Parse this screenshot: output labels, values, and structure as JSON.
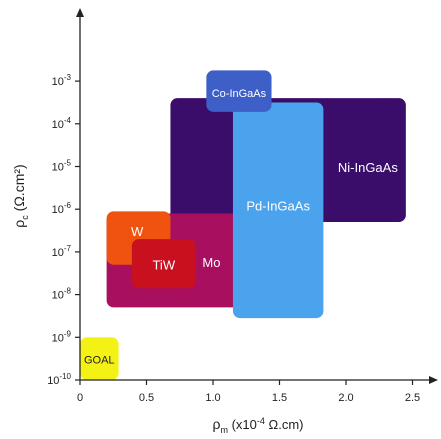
{
  "chart_data": {
    "type": "region-map",
    "xlabel": {
      "main": "ρ",
      "sub": "m",
      "rest": " (x10",
      "sup": "-4",
      "unit": " Ω.cm)"
    },
    "ylabel": {
      "main": "ρ",
      "sub": "c",
      "rest": " (Ω.cm²)"
    },
    "xlim": [
      0,
      2.75
    ],
    "ylim_exp": [
      -10,
      -2.6
    ],
    "y_scale": "log10",
    "x_ticks": [
      "0",
      "0.5",
      "1.0",
      "1.5",
      "2.0",
      "2.5"
    ],
    "x_tick_values": [
      0,
      0.5,
      1.0,
      1.5,
      2.0,
      2.5
    ],
    "y_tick_exps": [
      -3,
      -4,
      -5,
      -6,
      -7,
      -8,
      -9,
      -10
    ],
    "y_tick_labels": [
      "10",
      "10",
      "10",
      "10",
      "10",
      "10",
      "10",
      "10"
    ],
    "y_tick_sups": [
      "-3",
      "-4",
      "-5",
      "-6",
      "-7",
      "-8",
      "-9",
      "-10"
    ],
    "regions": [
      {
        "name": "Ni-InGaAs",
        "label": "Ni-InGaAs",
        "x": [
          0.68,
          2.45
        ],
        "y_exp": [
          -6.3,
          -3.4
        ],
        "color": "#3b0d6b"
      },
      {
        "name": "Mo",
        "label": "Mo",
        "x": [
          0.2,
          1.54
        ],
        "y_exp": [
          -8.3,
          -6.1
        ],
        "color": "#a8105f"
      },
      {
        "name": "Pd-InGaAs",
        "label": "Pd-InGaAs",
        "x": [
          1.15,
          1.83
        ],
        "y_exp": [
          -8.55,
          -3.5
        ],
        "color": "#4aa3ec"
      },
      {
        "name": "Co-InGaAs",
        "label": "Co-InGaAs",
        "x": [
          0.95,
          1.44
        ],
        "y_exp": [
          -3.72,
          -2.75
        ],
        "color": "#3e5fc7"
      },
      {
        "name": "W",
        "label": "W",
        "x": [
          0.2,
          0.68
        ],
        "y_exp": [
          -7.3,
          -6.05
        ],
        "color": "#f0530f"
      },
      {
        "name": "TiW",
        "label": "TiW",
        "x": [
          0.39,
          0.87
        ],
        "y_exp": [
          -7.85,
          -6.7
        ],
        "color": "#c8101f"
      },
      {
        "name": "GOAL",
        "label": "GOAL",
        "x": [
          0.0,
          0.29
        ],
        "y_exp": [
          -10.0,
          -9.0
        ],
        "color": "#f4f114"
      }
    ]
  }
}
